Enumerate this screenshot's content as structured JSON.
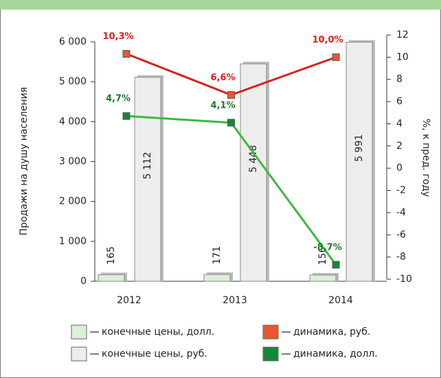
{
  "chart_data": {
    "type": "bar_line",
    "categories": [
      "2012",
      "2013",
      "2014"
    ],
    "y_label": "Продажи на душу населения",
    "y2_label": "%, к пред. году",
    "ylim": [
      0,
      6000
    ],
    "yticks": [
      0,
      {
        "value": 1000,
        "label": "1 000"
      },
      {
        "value": 2000,
        "label": "2 000"
      },
      {
        "value": 3000,
        "label": "3 000"
      },
      {
        "value": 4000,
        "label": "4 000"
      },
      {
        "value": 5000,
        "label": "5 000"
      },
      {
        "value": 6000,
        "label": "6 000"
      }
    ],
    "y2lim": [
      -10,
      12
    ],
    "y2ticks": [
      -10,
      -8,
      -6,
      -4,
      -2,
      0,
      2,
      4,
      6,
      8,
      10,
      12
    ],
    "series": [
      {
        "name": "конечные цены, долл.",
        "color": "#dcefd8",
        "kind": "bar",
        "values": [
          165,
          171,
          156
        ]
      },
      {
        "name": "конечные цены, руб.",
        "color": "#ededed",
        "kind": "bar",
        "values": [
          5112,
          5448,
          5991
        ],
        "value_labels": [
          "5 112",
          "5 448",
          "5 991"
        ]
      },
      {
        "name": "динамика, руб.",
        "color": "#d9201f",
        "marker_color": "#e8572e",
        "kind": "line",
        "axis": "y2",
        "values": [
          10.3,
          6.6,
          10.0
        ],
        "value_labels": [
          "10,3%",
          "6,6%",
          "10,0%"
        ]
      },
      {
        "name": "динамика, долл.",
        "color": "#3cb93c",
        "marker_color": "#138a36",
        "label_color": "#1d7a2e",
        "kind": "line",
        "axis": "y2",
        "values": [
          4.7,
          4.1,
          -8.7
        ],
        "value_labels": [
          "4,7%",
          "4,1%",
          "-8,7%"
        ]
      }
    ]
  }
}
